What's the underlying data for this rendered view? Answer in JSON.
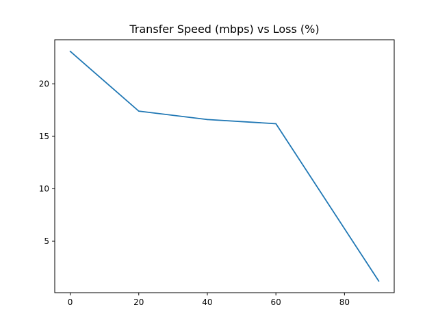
{
  "chart_data": {
    "type": "line",
    "title": "Transfer Speed (mbps) vs Loss (%)",
    "xlabel": "",
    "ylabel": "",
    "xlim": [
      -4.5,
      94.5
    ],
    "ylim": [
      0.1,
      24.2
    ],
    "xticks": [
      0,
      20,
      40,
      60,
      80
    ],
    "yticks": [
      5,
      10,
      15,
      20
    ],
    "grid": false,
    "line_color": "#1f77b4",
    "series": [
      {
        "x": [
          0,
          20,
          40,
          60,
          90
        ],
        "y": [
          23.1,
          17.4,
          16.6,
          16.2,
          1.2
        ]
      }
    ]
  }
}
